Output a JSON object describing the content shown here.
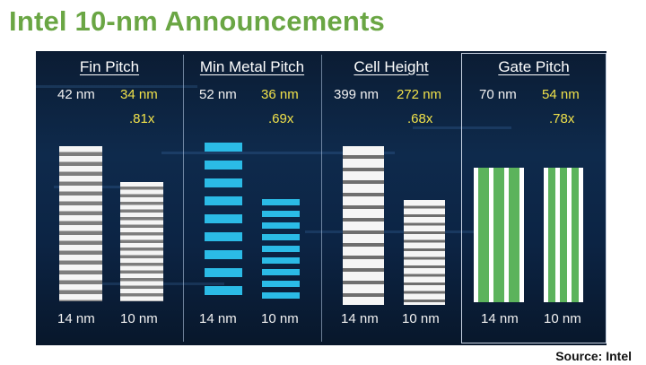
{
  "slide": {
    "title": "Intel 10-nm Announcements",
    "source": "Source:  Intel"
  },
  "columns": [
    {
      "heading": "Fin Pitch",
      "value_14nm": "42 nm",
      "value_10nm": "34 nm",
      "ratio": ".81x",
      "node_left": "14 nm",
      "node_right": "10 nm"
    },
    {
      "heading": "Min Metal Pitch",
      "value_14nm": "52 nm",
      "value_10nm": "36 nm",
      "ratio": ".69x",
      "node_left": "14 nm",
      "node_right": "10 nm"
    },
    {
      "heading": "Cell Height",
      "value_14nm": "399 nm",
      "value_10nm": "272 nm",
      "ratio": ".68x",
      "node_left": "14 nm",
      "node_right": "10 nm"
    },
    {
      "heading": "Gate Pitch",
      "value_14nm": "70 nm",
      "value_10nm": "54 nm",
      "ratio": ".78x",
      "node_left": "14 nm",
      "node_right": "10 nm"
    }
  ],
  "colors": {
    "title_green": "#6aa644",
    "panel_navy": "#0c2444",
    "value_yellow": "#f0e14a",
    "fin_stripe_white": "#f5f5f5",
    "fin_stripe_gray": "#7d7d7d",
    "metal_cyan": "#2bbbe6",
    "cell_gray": "#6e6e6e",
    "gate_green": "#5cb35c"
  }
}
